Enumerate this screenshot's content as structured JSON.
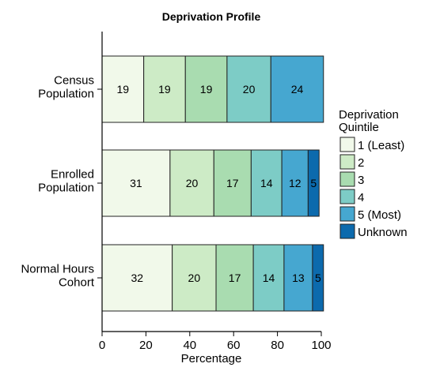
{
  "chart_data": {
    "type": "bar",
    "orientation": "horizontal",
    "stacked": true,
    "title": "Deprivation Profile",
    "xlabel": "Percentage",
    "ylabel": "",
    "xlim": [
      0,
      100
    ],
    "xticks": [
      "0",
      "20",
      "40",
      "60",
      "80",
      "100"
    ],
    "grid": false,
    "legend_position": "right",
    "legend_title": "Deprivation Quintile",
    "categories": [
      "Census Population",
      "Enrolled Population",
      "Normal Hours Cohort"
    ],
    "category_lines": [
      [
        "Census",
        "Population"
      ],
      [
        "Enrolled",
        "Population"
      ],
      [
        "Normal Hours",
        "Cohort"
      ]
    ],
    "series": [
      {
        "name": "1 (Least)",
        "color": "#f1f9ea",
        "values": [
          19,
          31,
          32
        ],
        "labels": [
          "19",
          "31",
          "32"
        ]
      },
      {
        "name": "2",
        "color": "#cdebc6",
        "values": [
          19,
          20,
          20
        ],
        "labels": [
          "19",
          "20",
          "20"
        ]
      },
      {
        "name": "3",
        "color": "#a9dcb0",
        "values": [
          19,
          17,
          17
        ],
        "labels": [
          "19",
          "17",
          "17"
        ]
      },
      {
        "name": "4",
        "color": "#7dccc6",
        "values": [
          20,
          14,
          14
        ],
        "labels": [
          "20",
          "14",
          "14"
        ]
      },
      {
        "name": "5 (Most)",
        "color": "#46a7d0",
        "values": [
          24,
          12,
          13
        ],
        "labels": [
          "24",
          "12",
          "13"
        ]
      },
      {
        "name": "Unknown",
        "color": "#0c6aad",
        "values": [
          0,
          5,
          5
        ],
        "labels": [
          "",
          "5",
          "5"
        ]
      }
    ]
  }
}
